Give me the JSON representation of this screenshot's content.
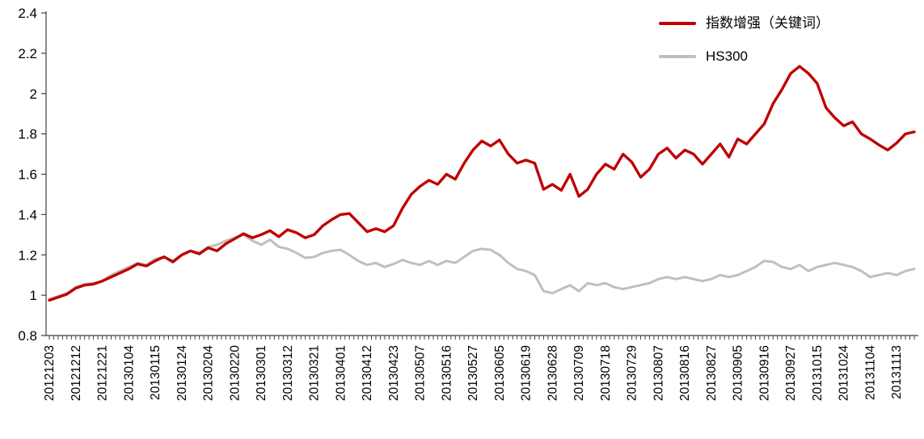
{
  "chart_data": {
    "type": "line",
    "title": "",
    "grid": false,
    "legend_position": "top-right",
    "ylim": [
      0.8,
      2.4
    ],
    "y_ticks": [
      0.8,
      1.0,
      1.2,
      1.4,
      1.6,
      1.8,
      2.0,
      2.2,
      2.4
    ],
    "y_tick_labels": [
      "0.8",
      "1",
      "1.2",
      "1.4",
      "1.6",
      "1.8",
      "2",
      "2.2",
      "2.4"
    ],
    "label_every": 3,
    "x_tick_labels": [
      "20121203",
      "20121212",
      "20121221",
      "20130104",
      "20130115",
      "20130124",
      "20130204",
      "20130220",
      "20130301",
      "20130312",
      "20130321",
      "20130401",
      "20130412",
      "20130423",
      "20130507",
      "20130516",
      "20130527",
      "20130605",
      "20130619",
      "20130628",
      "20130709",
      "20130718",
      "20130729",
      "20130807",
      "20130816",
      "20130827",
      "20130905",
      "20130916",
      "20130927",
      "20131015",
      "20131024",
      "20131104",
      "20131113"
    ],
    "axis_color": "#404040",
    "text_color": "#000000",
    "series": [
      {
        "name": "指数增强（关键词）",
        "color": "#C00000",
        "width": 3.4,
        "values": [
          0.975,
          0.99,
          1.005,
          1.035,
          1.05,
          1.055,
          1.07,
          1.09,
          1.11,
          1.13,
          1.155,
          1.145,
          1.17,
          1.19,
          1.165,
          1.2,
          1.22,
          1.205,
          1.235,
          1.22,
          1.255,
          1.28,
          1.305,
          1.285,
          1.3,
          1.32,
          1.29,
          1.325,
          1.31,
          1.285,
          1.3,
          1.345,
          1.375,
          1.4,
          1.405,
          1.36,
          1.315,
          1.33,
          1.315,
          1.345,
          1.43,
          1.5,
          1.54,
          1.57,
          1.55,
          1.6,
          1.575,
          1.655,
          1.72,
          1.765,
          1.74,
          1.77,
          1.7,
          1.655,
          1.67,
          1.655,
          1.525,
          1.55,
          1.52,
          1.6,
          1.49,
          1.525,
          1.6,
          1.65,
          1.625,
          1.7,
          1.66,
          1.585,
          1.625,
          1.7,
          1.73,
          1.68,
          1.72,
          1.7,
          1.65,
          1.7,
          1.75,
          1.685,
          1.775,
          1.75,
          1.8,
          1.85,
          1.95,
          2.02,
          2.1,
          2.135,
          2.1,
          2.05,
          1.93,
          1.88,
          1.84,
          1.86,
          1.8,
          1.775,
          1.745,
          1.72,
          1.755,
          1.8,
          1.81
        ]
      },
      {
        "name": "HS300",
        "color": "#BFBFBF",
        "width": 3.0,
        "values": [
          0.98,
          0.995,
          1.01,
          1.04,
          1.055,
          1.06,
          1.07,
          1.1,
          1.12,
          1.14,
          1.16,
          1.15,
          1.18,
          1.19,
          1.17,
          1.2,
          1.22,
          1.21,
          1.24,
          1.25,
          1.27,
          1.285,
          1.3,
          1.27,
          1.25,
          1.275,
          1.24,
          1.23,
          1.21,
          1.185,
          1.19,
          1.21,
          1.22,
          1.225,
          1.2,
          1.17,
          1.15,
          1.16,
          1.14,
          1.155,
          1.175,
          1.16,
          1.15,
          1.17,
          1.15,
          1.17,
          1.16,
          1.19,
          1.22,
          1.23,
          1.225,
          1.2,
          1.16,
          1.13,
          1.12,
          1.1,
          1.02,
          1.01,
          1.03,
          1.05,
          1.02,
          1.06,
          1.05,
          1.06,
          1.04,
          1.03,
          1.04,
          1.05,
          1.06,
          1.08,
          1.09,
          1.08,
          1.09,
          1.08,
          1.07,
          1.08,
          1.1,
          1.09,
          1.1,
          1.12,
          1.14,
          1.17,
          1.165,
          1.14,
          1.13,
          1.15,
          1.12,
          1.14,
          1.15,
          1.16,
          1.15,
          1.14,
          1.12,
          1.09,
          1.1,
          1.11,
          1.1,
          1.12,
          1.13
        ]
      }
    ]
  }
}
